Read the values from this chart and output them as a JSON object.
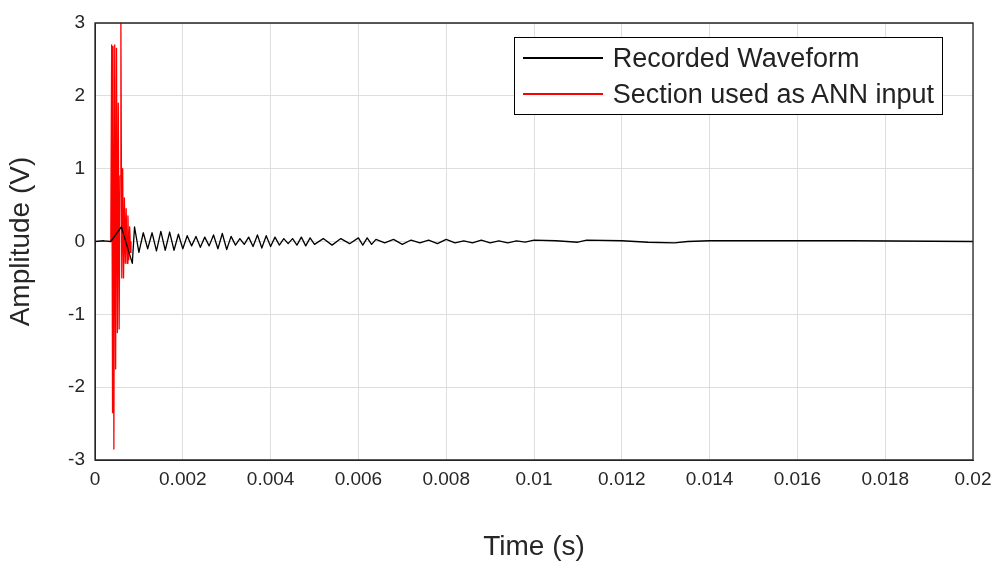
{
  "chart_data": {
    "type": "line",
    "xlabel": "Time (s)",
    "ylabel": "Amplitude (V)",
    "xlim": [
      0,
      0.02
    ],
    "xticks": [
      0,
      0.002,
      0.004,
      0.006,
      0.008,
      0.01,
      0.012,
      0.014,
      0.016,
      0.018,
      0.02
    ],
    "ylim": [
      -3,
      3
    ],
    "yticks": [
      -3,
      -2,
      -1,
      0,
      1,
      2,
      3
    ],
    "grid": true,
    "legend": "top right",
    "marker": "none",
    "line_style": "solid",
    "series": [
      {
        "name": "Recorded Waveform",
        "color": "#000000",
        "x": [
          0,
          0.0002,
          0.00036,
          0.0006,
          0.00085,
          0.0009,
          0.001,
          0.0011,
          0.0012,
          0.0013,
          0.0014,
          0.0015,
          0.0016,
          0.0017,
          0.0018,
          0.0019,
          0.002,
          0.0021,
          0.0022,
          0.0023,
          0.0024,
          0.0025,
          0.0026,
          0.0027,
          0.0028,
          0.0029,
          0.003,
          0.0031,
          0.0032,
          0.0033,
          0.0034,
          0.0035,
          0.0036,
          0.0037,
          0.0038,
          0.0039,
          0.004,
          0.0041,
          0.0042,
          0.0043,
          0.0044,
          0.0045,
          0.0046,
          0.0047,
          0.0048,
          0.0049,
          0.005,
          0.0052,
          0.0054,
          0.0056,
          0.0058,
          0.006,
          0.0061,
          0.0062,
          0.0063,
          0.0064,
          0.0066,
          0.0068,
          0.007,
          0.0072,
          0.0074,
          0.0076,
          0.0078,
          0.008,
          0.0082,
          0.0084,
          0.0086,
          0.0088,
          0.009,
          0.0092,
          0.0094,
          0.0096,
          0.0098,
          0.01,
          0.0105,
          0.011,
          0.0112,
          0.012,
          0.0126,
          0.0132,
          0.0135,
          0.014,
          0.0154,
          0.0172,
          0.02
        ],
        "values": [
          0,
          0.01,
          0,
          0.2,
          -0.3,
          0.2,
          -0.15,
          0.12,
          -0.1,
          0.12,
          -0.13,
          0.14,
          -0.12,
          0.13,
          -0.12,
          0.1,
          -0.1,
          0.08,
          -0.06,
          0.07,
          -0.08,
          0.06,
          -0.06,
          0.09,
          -0.1,
          0.11,
          -0.11,
          0.07,
          -0.05,
          0.04,
          -0.04,
          0.06,
          -0.07,
          0.09,
          -0.09,
          0.08,
          -0.07,
          0.06,
          -0.05,
          0.04,
          -0.03,
          0.04,
          -0.05,
          0.06,
          -0.06,
          0.05,
          -0.04,
          0.04,
          -0.05,
          0.04,
          -0.03,
          0.05,
          -0.05,
          0.05,
          -0.04,
          0.03,
          -0.02,
          0.03,
          -0.04,
          0.02,
          -0.02,
          0.02,
          -0.03,
          0.03,
          -0.02,
          0.01,
          -0.02,
          0.02,
          -0.02,
          0.01,
          -0.02,
          0.01,
          -0.01,
          0.02,
          0.01,
          -0.01,
          0.02,
          0.01,
          -0.01,
          -0.02,
          0,
          0.01,
          0.01,
          0.01,
          0
        ]
      },
      {
        "name": "Section used as ANN input",
        "color": "#ff0000",
        "x": [
          0.00036,
          0.00038,
          0.0004,
          0.00041,
          0.00043,
          0.00045,
          0.00047,
          0.00049,
          0.00051,
          0.00053,
          0.00055,
          0.00057,
          0.00059,
          0.00061,
          0.00063,
          0.00065,
          0.00067,
          0.00069,
          0.00071,
          0.00073,
          0.00075,
          0.00077,
          0.00079,
          0.00081,
          0.00082
        ],
        "values": [
          0,
          2.7,
          -2.35,
          2.68,
          -2.85,
          2.7,
          -1.75,
          2.65,
          -1.25,
          1.9,
          -1.2,
          0.9,
          3.0,
          -0.5,
          1.0,
          -0.5,
          0.6,
          -0.3,
          0.45,
          -0.3,
          0.35,
          -0.25,
          0.2,
          -0.15,
          0
        ]
      }
    ]
  }
}
